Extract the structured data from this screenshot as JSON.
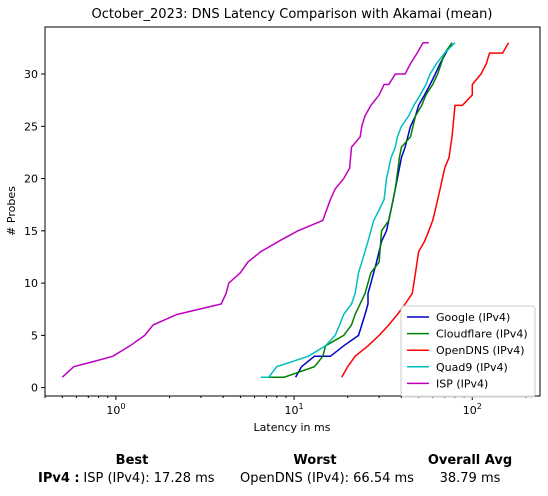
{
  "chart_data": {
    "type": "line",
    "title": "October_2023: DNS Latency Comparison with Akamai (mean)",
    "xlabel": "Latency in ms",
    "ylabel": "# Probes",
    "xscale": "log",
    "xlim": [
      0.4,
      240
    ],
    "ylim": [
      -0.8,
      34.5
    ],
    "xticks": [
      {
        "value": 1,
        "base": "10",
        "exp": "0"
      },
      {
        "value": 10,
        "base": "10",
        "exp": "1"
      },
      {
        "value": 100,
        "base": "10",
        "exp": "2"
      }
    ],
    "yticks": [
      "0",
      "5",
      "10",
      "15",
      "20",
      "25",
      "30"
    ],
    "legend_position": "lower-right",
    "grid": false,
    "series": [
      {
        "name": "Google (IPv4)",
        "color": "#0000cc",
        "x": [
          10.2,
          11,
          13,
          16,
          19,
          23,
          24,
          25,
          26,
          26,
          27,
          29,
          31,
          33,
          35,
          37,
          39,
          40,
          42,
          45,
          48,
          50,
          54,
          58,
          62,
          66,
          71,
          77
        ],
        "y": [
          1,
          2,
          3,
          3,
          4,
          5,
          6,
          7,
          8,
          9,
          10,
          12,
          14,
          15,
          17,
          19,
          21,
          22,
          23,
          25,
          26,
          27,
          28,
          29,
          30,
          31,
          32,
          33
        ]
      },
      {
        "name": "Cloudflare (IPv4)",
        "color": "#008000",
        "x": [
          6.8,
          8.8,
          13,
          14.5,
          15,
          19,
          21,
          22,
          25,
          27,
          30,
          31,
          34,
          36,
          37,
          39,
          40,
          45,
          48,
          52,
          55,
          60,
          64,
          70,
          77
        ],
        "y": [
          1,
          1,
          2,
          3,
          4,
          5,
          6,
          7,
          9,
          11,
          12,
          15,
          16,
          18,
          19,
          22,
          23,
          24,
          26,
          27,
          28,
          29,
          30,
          32,
          33
        ]
      },
      {
        "name": "OpenDNS (IPv4)",
        "color": "#ff0000",
        "x": [
          18.5,
          20,
          22,
          26,
          30,
          34,
          38,
          42,
          46,
          48,
          50,
          54,
          57,
          60,
          62,
          64,
          66,
          68,
          70,
          74,
          77,
          80,
          88,
          100,
          100,
          112,
          120,
          125,
          148,
          160
        ],
        "y": [
          1,
          2,
          3,
          4,
          5,
          6,
          7,
          8,
          9,
          11,
          13,
          14,
          15,
          16,
          17,
          18,
          19,
          20,
          21,
          22,
          24,
          27,
          27,
          28,
          29,
          30,
          31,
          32,
          32,
          33
        ]
      },
      {
        "name": "Quad9 (IPv4)",
        "color": "#00bfbf",
        "x": [
          6.5,
          7.2,
          8,
          12,
          15,
          17,
          18,
          19,
          21,
          22,
          22.5,
          23,
          24,
          25,
          26,
          27,
          28,
          30,
          32,
          33,
          34,
          35,
          37,
          38,
          40,
          44,
          47,
          51,
          55,
          58,
          63,
          70,
          80
        ],
        "y": [
          1,
          1,
          2,
          3,
          4,
          5,
          6,
          7,
          8,
          9,
          10,
          11,
          12,
          13,
          14,
          15,
          16,
          17,
          18,
          20,
          21,
          22,
          23,
          24,
          25,
          26,
          27,
          28,
          29,
          30,
          31,
          32,
          33
        ]
      },
      {
        "name": "ISP (IPv4)",
        "color": "#bf00bf",
        "x": [
          0.5,
          0.58,
          0.75,
          0.96,
          1.2,
          1.45,
          1.62,
          2.2,
          3.9,
          4.15,
          4.3,
          5.0,
          5.5,
          6.5,
          8.2,
          10.5,
          14.5,
          16,
          17,
          19,
          20.5,
          21,
          23.5,
          24,
          25,
          27,
          30,
          32,
          34,
          37,
          42,
          45,
          49,
          53,
          57
        ],
        "y": [
          1,
          2,
          2.5,
          3,
          4,
          5,
          6,
          7,
          8,
          9,
          10,
          11,
          12,
          13,
          14,
          15,
          16,
          18,
          19,
          20,
          21,
          23,
          24,
          25,
          26,
          27,
          28,
          29,
          29,
          30,
          30,
          31,
          32,
          33,
          33
        ]
      }
    ]
  },
  "summary": {
    "row_label": "IPv4",
    "best_header": "Best",
    "worst_header": "Worst",
    "avg_header": "Overall Avg",
    "best_value": "ISP (IPv4): 17.28 ms",
    "worst_value": "OpenDNS (IPv4): 66.54 ms",
    "avg_value": "38.79 ms"
  }
}
